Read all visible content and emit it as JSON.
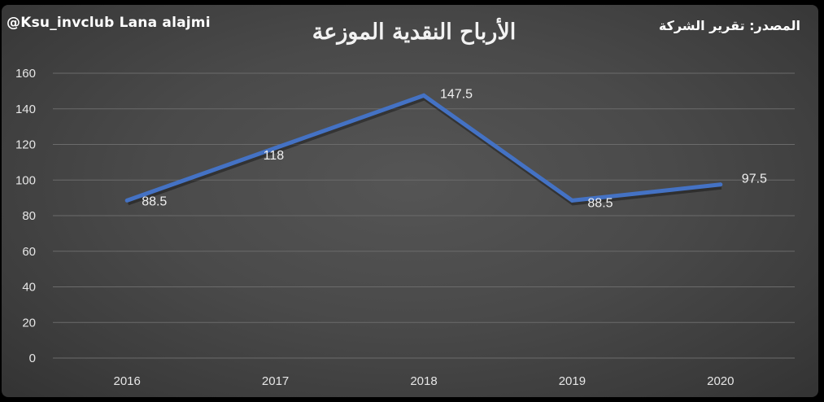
{
  "header": {
    "handle": "@Ksu_invclub Lana alajmi",
    "source": "المصدر: تقرير الشركة"
  },
  "chart_data": {
    "type": "line",
    "title": "الأرباح النقدية الموزعة",
    "xlabel": "",
    "ylabel": "",
    "categories": [
      "2016",
      "2017",
      "2018",
      "2019",
      "2020"
    ],
    "series": [
      {
        "values": [
          88.5,
          118,
          147.5,
          88.5,
          97.5
        ],
        "data_labels": [
          "88.5",
          "118",
          "147.5",
          "88.5",
          "97.5"
        ],
        "color": "#4472c4"
      }
    ],
    "ylim": [
      0,
      160
    ],
    "yticks": [
      0,
      20,
      40,
      60,
      80,
      100,
      120,
      140,
      160
    ],
    "grid": true,
    "legend": "none"
  },
  "colors": {
    "background": "#4a4a4a",
    "gridline": "#6b6b6b",
    "line": "#4472c4",
    "text": "#e6e6e6"
  }
}
